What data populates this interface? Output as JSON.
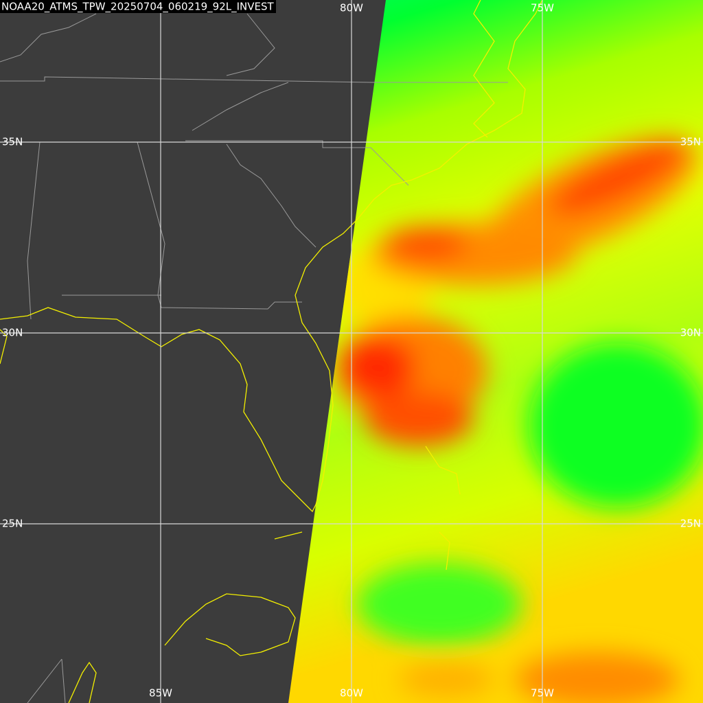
{
  "map": {
    "title": "NOAA20_ATMS_TPW_20250704_060219_92L_INVEST",
    "lon_labels_top": [
      "80W",
      "75W"
    ],
    "lon_labels_bottom": [
      "85W",
      "80W",
      "75W"
    ],
    "lat_labels_left": [
      "35N",
      "30N",
      "25N"
    ],
    "lat_labels_right": [
      "35N",
      "30N",
      "25N"
    ]
  }
}
